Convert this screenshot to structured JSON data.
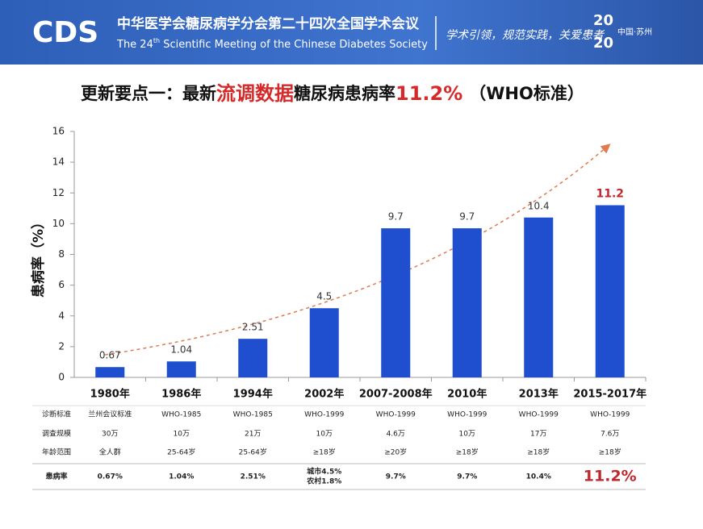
{
  "header": {
    "logo": "CDS",
    "title_cn": "中华医学会糖尿病学分会第二十四次全国学术会议",
    "title_en_pre": "The 24",
    "title_en_sup": "th",
    "title_en_post": " Scientific Meeting of the Chinese Diabetes Society",
    "slogan": "学术引领，规范实践，关爱患者",
    "year_top": "20",
    "year_bottom": "20",
    "city": "中国·苏州"
  },
  "slide_title": {
    "part1": "更新要点一：最新",
    "part2": "流调数据",
    "part3": "糖尿病患病率",
    "part4": "11.2%",
    "part5": "（WHO标准）"
  },
  "chart_data": {
    "type": "bar",
    "ylabel": "患病率（%）",
    "categories": [
      "1980年",
      "1986年",
      "1994年",
      "2002年",
      "2007-2008年",
      "2010年",
      "2013年",
      "2015-2017年"
    ],
    "values": [
      0.67,
      1.04,
      2.51,
      4.5,
      9.7,
      9.7,
      10.4,
      11.2
    ],
    "value_label_colors": [
      "#333333",
      "#333333",
      "#333333",
      "#333333",
      "#333333",
      "#333333",
      "#333333",
      "#c0282d"
    ],
    "color": "#1f4fcf",
    "ylim": [
      0,
      16
    ],
    "yticks": [
      0,
      2,
      4,
      6,
      8,
      10,
      12,
      14,
      16
    ],
    "grid": false
  },
  "table": {
    "rows": [
      [
        "诊断标准",
        "兰州会议标准",
        "WHO-1985",
        "WHO-1985",
        "WHO-1999",
        "WHO-1999",
        "WHO-1999",
        "WHO-1999",
        "WHO-1999"
      ],
      [
        "调查规模",
        "30万",
        "10万",
        "21万",
        "10万",
        "4.6万",
        "10万",
        "17万",
        "7.6万"
      ],
      [
        "年龄范围",
        "全人群",
        "25-64岁",
        "25-64岁",
        "≥18岁",
        "≥20岁",
        "≥18岁",
        "≥18岁",
        "≥18岁"
      ],
      [
        "患病率",
        "0.67%",
        "1.04%",
        "2.51%",
        [
          "城市4.5%",
          "农村1.8%"
        ],
        "9.7%",
        "9.7%",
        "10.4%",
        "11.2%"
      ]
    ]
  }
}
